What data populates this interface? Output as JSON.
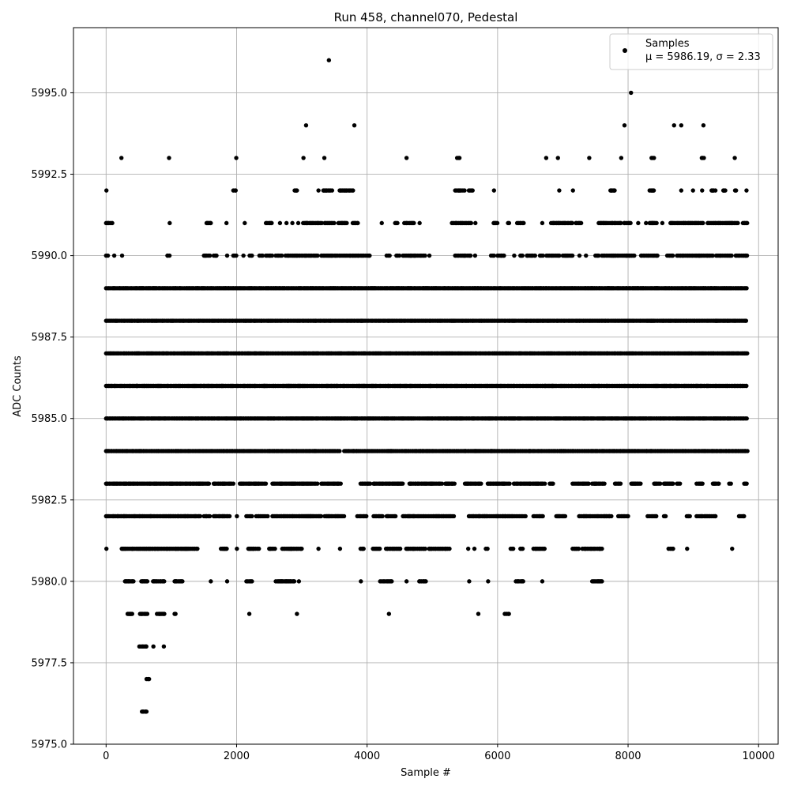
{
  "chart_data": {
    "type": "scatter",
    "title": "Run 458, channel070, Pedestal",
    "xlabel": "Sample #",
    "ylabel": "ADC Counts",
    "xlim": [
      -500,
      10300
    ],
    "ylim": [
      5975.0,
      5997.0
    ],
    "x_ticks": [
      0,
      2000,
      4000,
      6000,
      8000,
      10000
    ],
    "x_tick_labels": [
      "0",
      "2000",
      "4000",
      "6000",
      "8000",
      "10000"
    ],
    "y_ticks": [
      5975.0,
      5977.5,
      5980.0,
      5982.5,
      5985.0,
      5987.5,
      5990.0,
      5992.5,
      5995.0
    ],
    "y_tick_labels": [
      "5975.0",
      "5977.5",
      "5980.0",
      "5982.5",
      "5985.0",
      "5987.5",
      "5990.0",
      "5992.5",
      "5995.0"
    ],
    "grid": true,
    "legend": {
      "placement": "top-right",
      "label": "Samples",
      "stats": "μ = 5986.19, σ = 2.33"
    },
    "marker_color": "#000000",
    "series": [
      {
        "name": "Samples",
        "x_range": [
          0,
          9830
        ],
        "bands": [
          {
            "y": 5976,
            "ranges": [
              [
                550,
                620
              ]
            ]
          },
          {
            "y": 5977,
            "ranges": [
              [
                620,
                660
              ]
            ]
          },
          {
            "y": 5978,
            "ranges": [
              [
                510,
                620
              ],
              [
                720,
                730
              ],
              [
                880,
                890
              ]
            ]
          },
          {
            "y": 5979,
            "ranges": [
              [
                330,
                400
              ],
              [
                520,
                640
              ],
              [
                780,
                900
              ],
              [
                1050,
                1070
              ],
              [
                2190,
                2200
              ],
              [
                2920,
                2930
              ],
              [
                4330,
                4340
              ],
              [
                5700,
                5710
              ],
              [
                6110,
                6180
              ]
            ]
          },
          {
            "y": 5980,
            "ranges": [
              [
                290,
                420
              ],
              [
                540,
                640
              ],
              [
                720,
                900
              ],
              [
                1050,
                1180
              ],
              [
                1600,
                1610
              ],
              [
                1850,
                1860
              ],
              [
                2150,
                2250
              ],
              [
                2600,
                2900
              ],
              [
                2950,
                2960
              ],
              [
                3900,
                3910
              ],
              [
                4200,
                4400
              ],
              [
                4600,
                4610
              ],
              [
                4800,
                4900
              ],
              [
                5560,
                5570
              ],
              [
                5850,
                5860
              ],
              [
                6280,
                6400
              ],
              [
                6680,
                6690
              ],
              [
                7450,
                7600
              ]
            ]
          },
          {
            "y": 5981,
            "ranges": [
              [
                0,
                10
              ],
              [
                240,
                1400
              ],
              [
                1760,
                1850
              ],
              [
                2000,
                2010
              ],
              [
                2180,
                2350
              ],
              [
                2500,
                2600
              ],
              [
                2700,
                3000
              ],
              [
                3250,
                3260
              ],
              [
                3580,
                3590
              ],
              [
                3900,
                3960
              ],
              [
                4090,
                4200
              ],
              [
                4290,
                4520
              ],
              [
                4600,
                4900
              ],
              [
                4950,
                5280
              ],
              [
                5550,
                5570
              ],
              [
                5640,
                5650
              ],
              [
                5820,
                5860
              ],
              [
                6200,
                6250
              ],
              [
                6350,
                6400
              ],
              [
                6550,
                6720
              ],
              [
                7150,
                7250
              ],
              [
                7300,
                7600
              ],
              [
                8620,
                8700
              ],
              [
                8900,
                8910
              ],
              [
                9590,
                9600
              ]
            ]
          },
          {
            "y": 5982,
            "ranges": [
              [
                0,
                1450
              ],
              [
                1500,
                1600
              ],
              [
                1650,
                1900
              ],
              [
                2000,
                2010
              ],
              [
                2150,
                2250
              ],
              [
                2300,
                2500
              ],
              [
                2550,
                3300
              ],
              [
                3350,
                3650
              ],
              [
                3850,
                4000
              ],
              [
                4100,
                4250
              ],
              [
                4300,
                4450
              ],
              [
                4550,
                5350
              ],
              [
                5560,
                6450
              ],
              [
                6550,
                6700
              ],
              [
                6900,
                7050
              ],
              [
                7250,
                7750
              ],
              [
                7850,
                8000
              ],
              [
                8300,
                8450
              ],
              [
                8550,
                8600
              ],
              [
                8900,
                8950
              ],
              [
                9050,
                9350
              ],
              [
                9700,
                9780
              ]
            ]
          },
          {
            "y": 5983,
            "ranges": [
              [
                0,
                1600
              ],
              [
                1650,
                1950
              ],
              [
                2050,
                2450
              ],
              [
                2550,
                3250
              ],
              [
                3300,
                3600
              ],
              [
                3900,
                4050
              ],
              [
                4100,
                4550
              ],
              [
                4650,
                5150
              ],
              [
                5200,
                5350
              ],
              [
                5500,
                5750
              ],
              [
                5850,
                6200
              ],
              [
                6250,
                6750
              ],
              [
                6800,
                6850
              ],
              [
                7150,
                7400
              ],
              [
                7450,
                7650
              ],
              [
                7800,
                7900
              ],
              [
                8050,
                8200
              ],
              [
                8400,
                8500
              ],
              [
                8550,
                8700
              ],
              [
                8750,
                8800
              ],
              [
                9050,
                9150
              ],
              [
                9300,
                9400
              ],
              [
                9550,
                9580
              ],
              [
                9780,
                9830
              ]
            ]
          },
          {
            "y": 5984,
            "ranges": [
              [
                0,
                3580
              ],
              [
                3650,
                9830
              ]
            ]
          },
          {
            "y": 5985,
            "ranges": [
              [
                0,
                9830
              ]
            ]
          },
          {
            "y": 5986,
            "ranges": [
              [
                0,
                9830
              ]
            ]
          },
          {
            "y": 5987,
            "ranges": [
              [
                0,
                9830
              ]
            ]
          },
          {
            "y": 5988,
            "ranges": [
              [
                0,
                9830
              ]
            ]
          },
          {
            "y": 5989,
            "ranges": [
              [
                0,
                9830
              ]
            ]
          },
          {
            "y": 5990,
            "ranges": [
              [
                0,
                50
              ],
              [
                120,
                130
              ],
              [
                240,
                250
              ],
              [
                940,
                980
              ],
              [
                1500,
                1600
              ],
              [
                1650,
                1700
              ],
              [
                1850,
                1860
              ],
              [
                1950,
                2000
              ],
              [
                2100,
                2110
              ],
              [
                2200,
                2250
              ],
              [
                2350,
                2400
              ],
              [
                2450,
                2550
              ],
              [
                2600,
                2700
              ],
              [
                2750,
                3250
              ],
              [
                3300,
                4050
              ],
              [
                4300,
                4350
              ],
              [
                4450,
                4500
              ],
              [
                4550,
                4900
              ],
              [
                4950,
                4960
              ],
              [
                5350,
                5600
              ],
              [
                5650,
                5660
              ],
              [
                5900,
                5950
              ],
              [
                6000,
                6100
              ],
              [
                6250,
                6260
              ],
              [
                6350,
                6400
              ],
              [
                6450,
                6600
              ],
              [
                6650,
                6700
              ],
              [
                6750,
                6950
              ],
              [
                7000,
                7150
              ],
              [
                7250,
                7260
              ],
              [
                7350,
                7360
              ],
              [
                7500,
                7550
              ],
              [
                7600,
                8100
              ],
              [
                8200,
                8450
              ],
              [
                8600,
                8700
              ],
              [
                8750,
                9300
              ],
              [
                9350,
                9600
              ],
              [
                9650,
                9830
              ]
            ]
          },
          {
            "y": 5991,
            "ranges": [
              [
                0,
                100
              ],
              [
                970,
                980
              ],
              [
                1540,
                1610
              ],
              [
                1840,
                1850
              ],
              [
                2120,
                2130
              ],
              [
                2450,
                2560
              ],
              [
                2660,
                2670
              ],
              [
                2760,
                2770
              ],
              [
                2850,
                2860
              ],
              [
                2940,
                2950
              ],
              [
                3020,
                3320
              ],
              [
                3350,
                3500
              ],
              [
                3560,
                3700
              ],
              [
                3780,
                3860
              ],
              [
                4220,
                4230
              ],
              [
                4430,
                4480
              ],
              [
                4570,
                4720
              ],
              [
                4800,
                4810
              ],
              [
                5300,
                5600
              ],
              [
                5660,
                5680
              ],
              [
                5940,
                6000
              ],
              [
                6160,
                6180
              ],
              [
                6300,
                6400
              ],
              [
                6680,
                6690
              ],
              [
                6820,
                7150
              ],
              [
                7200,
                7300
              ],
              [
                7550,
                7900
              ],
              [
                7940,
                8050
              ],
              [
                8150,
                8160
              ],
              [
                8270,
                8280
              ],
              [
                8330,
                8450
              ],
              [
                8520,
                8530
              ],
              [
                8650,
                9150
              ],
              [
                9220,
                9700
              ],
              [
                9760,
                9830
              ]
            ]
          },
          {
            "y": 5992,
            "ranges": [
              [
                0,
                10
              ],
              [
                1950,
                2000
              ],
              [
                2890,
                2930
              ],
              [
                3250,
                3260
              ],
              [
                3330,
                3470
              ],
              [
                3580,
                3800
              ],
              [
                5350,
                5500
              ],
              [
                5560,
                5620
              ],
              [
                5940,
                5950
              ],
              [
                6940,
                6950
              ],
              [
                7150,
                7160
              ],
              [
                7730,
                7800
              ],
              [
                8330,
                8400
              ],
              [
                8810,
                8820
              ],
              [
                8990,
                9000
              ],
              [
                9130,
                9140
              ],
              [
                9280,
                9340
              ],
              [
                9460,
                9500
              ],
              [
                9640,
                9660
              ],
              [
                9810,
                9820
              ]
            ]
          },
          {
            "y": 5993,
            "ranges": [
              [
                230,
                240
              ],
              [
                960,
                970
              ],
              [
                1990,
                2000
              ],
              [
                3020,
                3030
              ],
              [
                3340,
                3350
              ],
              [
                4600,
                4610
              ],
              [
                5380,
                5420
              ],
              [
                6740,
                6750
              ],
              [
                6920,
                6930
              ],
              [
                7400,
                7410
              ],
              [
                7890,
                7900
              ],
              [
                8360,
                8420
              ],
              [
                9130,
                9170
              ],
              [
                9630,
                9640
              ]
            ]
          },
          {
            "y": 5994,
            "ranges": [
              [
                3060,
                3070
              ],
              [
                3800,
                3810
              ],
              [
                7940,
                7950
              ],
              [
                8700,
                8710
              ],
              [
                8810,
                8820
              ],
              [
                9150,
                9160
              ]
            ]
          },
          {
            "y": 5995,
            "ranges": [
              [
                8040,
                8050
              ]
            ]
          },
          {
            "y": 5996,
            "ranges": [
              [
                3410,
                3420
              ]
            ]
          }
        ]
      }
    ]
  }
}
